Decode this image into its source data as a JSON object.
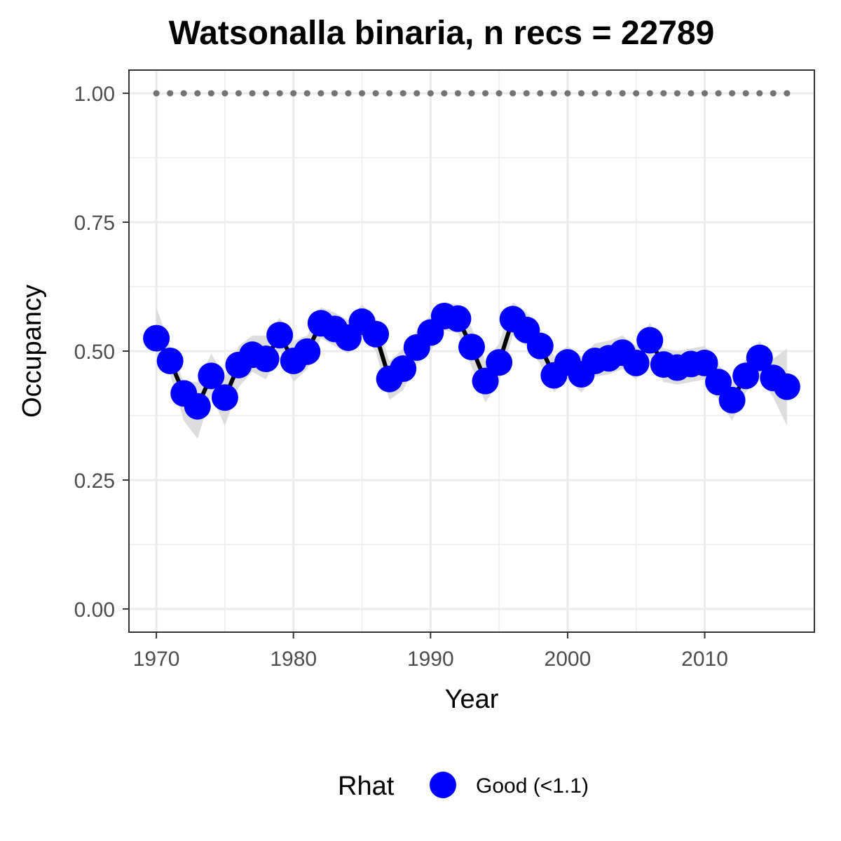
{
  "chart_data": {
    "type": "line",
    "title": "Watsonalla binaria, n recs = 22789",
    "xlabel": "Year",
    "ylabel": "Occupancy",
    "xlim": [
      1968,
      2018
    ],
    "ylim": [
      -0.045,
      1.045
    ],
    "x_ticks": [
      1970,
      1980,
      1990,
      2000,
      2010
    ],
    "x_tick_labels": [
      "1970",
      "1980",
      "1990",
      "2000",
      "2010"
    ],
    "y_ticks": [
      0,
      0.25,
      0.5,
      0.75,
      1
    ],
    "y_tick_labels": [
      "0.00",
      "0.25",
      "0.50",
      "0.75",
      "1.00"
    ],
    "grid": true,
    "legend": {
      "title": "Rhat",
      "position": "bottom",
      "entries": [
        "Good (<1.1)"
      ]
    },
    "colors": {
      "points": "#0000ff",
      "line": "#000000",
      "ribbon": "#d9d9d9",
      "reference": "#737373",
      "grid": "#ebebeb",
      "frame": "#333333"
    },
    "reference_value": 1.0,
    "series": [
      {
        "name": "Good (<1.1)",
        "x": [
          1970,
          1971,
          1972,
          1973,
          1974,
          1975,
          1976,
          1977,
          1978,
          1979,
          1980,
          1981,
          1982,
          1983,
          1984,
          1985,
          1986,
          1987,
          1988,
          1989,
          1990,
          1991,
          1992,
          1993,
          1994,
          1995,
          1996,
          1997,
          1998,
          1999,
          2000,
          2001,
          2002,
          2003,
          2004,
          2005,
          2006,
          2007,
          2008,
          2009,
          2010,
          2011,
          2012,
          2013,
          2014,
          2015,
          2016
        ],
        "y": [
          0.525,
          0.481,
          0.418,
          0.393,
          0.452,
          0.41,
          0.473,
          0.493,
          0.485,
          0.531,
          0.481,
          0.499,
          0.554,
          0.543,
          0.526,
          0.557,
          0.533,
          0.446,
          0.466,
          0.507,
          0.536,
          0.568,
          0.563,
          0.508,
          0.442,
          0.478,
          0.562,
          0.541,
          0.51,
          0.453,
          0.478,
          0.455,
          0.481,
          0.486,
          0.497,
          0.477,
          0.521,
          0.474,
          0.468,
          0.475,
          0.477,
          0.44,
          0.405,
          0.452,
          0.487,
          0.448,
          0.431
        ],
        "lower": [
          0.49,
          0.455,
          0.365,
          0.33,
          0.415,
          0.355,
          0.43,
          0.46,
          0.445,
          0.5,
          0.44,
          0.465,
          0.525,
          0.51,
          0.495,
          0.53,
          0.5,
          0.405,
          0.425,
          0.475,
          0.5,
          0.54,
          0.535,
          0.47,
          0.4,
          0.44,
          0.53,
          0.51,
          0.475,
          0.42,
          0.445,
          0.42,
          0.45,
          0.455,
          0.465,
          0.445,
          0.49,
          0.44,
          0.435,
          0.44,
          0.445,
          0.405,
          0.365,
          0.42,
          0.45,
          0.41,
          0.355
        ],
        "upper": [
          0.585,
          0.51,
          0.44,
          0.44,
          0.495,
          0.45,
          0.51,
          0.53,
          0.53,
          0.565,
          0.52,
          0.53,
          0.585,
          0.575,
          0.56,
          0.59,
          0.565,
          0.48,
          0.505,
          0.54,
          0.57,
          0.595,
          0.59,
          0.545,
          0.48,
          0.515,
          0.595,
          0.575,
          0.545,
          0.49,
          0.51,
          0.49,
          0.515,
          0.52,
          0.53,
          0.51,
          0.555,
          0.505,
          0.5,
          0.505,
          0.51,
          0.475,
          0.44,
          0.485,
          0.52,
          0.485,
          0.505
        ]
      }
    ]
  }
}
